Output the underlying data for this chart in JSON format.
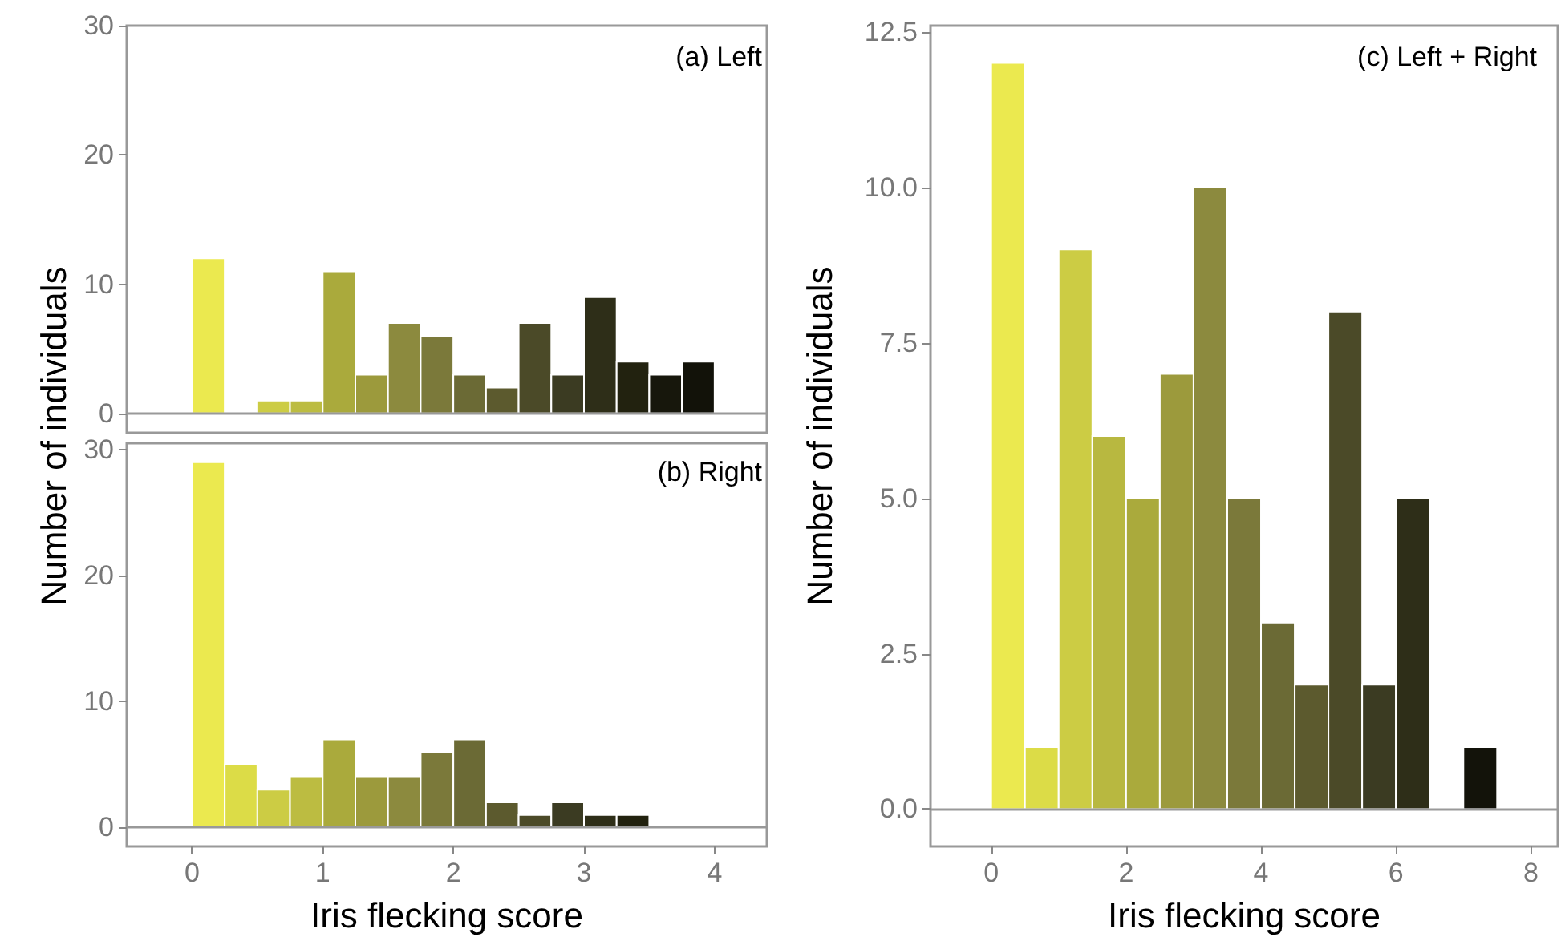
{
  "chart_data": [
    {
      "type": "histogram",
      "title": "(a) Left",
      "ylabel": "Number of individuals",
      "bins": [
        0,
        0.25,
        0.5,
        0.75,
        1,
        1.25,
        1.5,
        1.75,
        2,
        2.25,
        2.5,
        2.75,
        3,
        3.25,
        3.5,
        3.75,
        4
      ],
      "values": [
        12,
        0,
        1,
        1,
        11,
        3,
        7,
        6,
        3,
        2,
        7,
        3,
        9,
        4,
        3,
        4
      ],
      "colors": [
        "#ebe94f",
        null,
        "#cccc44",
        "#bcbc41",
        "#aaaa3c",
        "#9c9a3c",
        "#8c8a3e",
        "#7b793a",
        "#6b6a35",
        "#5c5a2e",
        "#4b4a28",
        "#3b3b22",
        "#2e2e18",
        "#22220f",
        "#17170c",
        "#121209"
      ],
      "xlim": [
        -0.5,
        4.4
      ],
      "ylim": [
        -1.5,
        30
      ],
      "yticks": [
        0,
        10,
        20,
        30
      ],
      "tick_labels": "y",
      "grid": false,
      "ref_lines": [
        {
          "axis": "y",
          "value": 0,
          "color": "#999999"
        }
      ]
    },
    {
      "type": "histogram",
      "title": "(b) Right",
      "xlabel": "Iris flecking score",
      "bins": [
        0,
        0.25,
        0.5,
        0.75,
        1,
        1.25,
        1.5,
        1.75,
        2,
        2.25,
        2.5,
        2.75,
        3,
        3.25,
        3.5
      ],
      "values": [
        29,
        5,
        3,
        4,
        7,
        4,
        4,
        6,
        7,
        2,
        1,
        2,
        1,
        1
      ],
      "colors": [
        "#ebe94f",
        "#dcdc47",
        "#cccc44",
        "#bcbc41",
        "#aaaa3c",
        "#9c9a3c",
        "#8c8a3e",
        "#7b793a",
        "#6b6a35",
        "#5c5a2e",
        "#4b4a28",
        "#3b3b22",
        "#2e2e18",
        "#22220f"
      ],
      "xlim": [
        -0.5,
        4.4
      ],
      "xticks": [
        0,
        1,
        2,
        3,
        4
      ],
      "ylim": [
        -1.5,
        30.5
      ],
      "yticks": [
        0,
        10,
        20,
        30
      ],
      "grid": false,
      "ref_lines": [
        {
          "axis": "y",
          "value": 0,
          "color": "#999999"
        }
      ]
    },
    {
      "type": "histogram",
      "title": "(c) Left + Right",
      "xlabel": "Iris flecking score",
      "ylabel": "Number of individuals",
      "bins": [
        0,
        0.5,
        1,
        1.5,
        2,
        2.5,
        3,
        3.5,
        4,
        4.5,
        5,
        5.5,
        6,
        6.5,
        7,
        7.5
      ],
      "values": [
        12,
        1,
        9,
        6,
        5,
        7,
        10,
        5,
        3,
        2,
        8,
        2,
        5,
        0,
        1
      ],
      "colors": [
        "#ebe94f",
        "#dcdc47",
        "#cccc44",
        "#b8b840",
        "#aaaa3c",
        "#9c9a3c",
        "#8c8a3e",
        "#7b793a",
        "#6b6a35",
        "#5c5a2e",
        "#4b4a28",
        "#3b3b22",
        "#2e2e18",
        null,
        "#13130a"
      ],
      "xlim": [
        -0.9,
        8.4
      ],
      "xticks": [
        0,
        2,
        4,
        6,
        8
      ],
      "ylim": [
        -0.6,
        12.6
      ],
      "yticks": [
        {
          "value": 0,
          "label": "0.0"
        },
        {
          "value": 2.5,
          "label": "2.5"
        },
        {
          "value": 5,
          "label": "5.0"
        },
        {
          "value": 7.5,
          "label": "7.5"
        },
        {
          "value": 10,
          "label": "10.0"
        },
        {
          "value": 12.5,
          "label": "12.5"
        }
      ],
      "grid": false,
      "ref_lines": [
        {
          "axis": "y",
          "value": 0,
          "color": "#999999"
        }
      ]
    }
  ]
}
